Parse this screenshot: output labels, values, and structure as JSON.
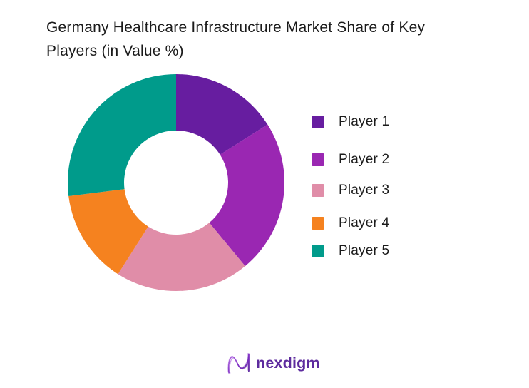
{
  "title": {
    "full": "Germany Healthcare Infrastructure Market Share of Key Players (in Value %)",
    "line1": "Germany Healthcare Infrastructure Market Share of Key",
    "line2": "Players (in Value %)"
  },
  "chart_data": {
    "type": "pie",
    "subtype": "donut",
    "title": "Germany Healthcare Infrastructure Market Share of Key Players (in Value %)",
    "categories": [
      "Player 1",
      "Player 2",
      "Player 3",
      "Player 4",
      "Player 5"
    ],
    "values": [
      16,
      23,
      20,
      14,
      27
    ],
    "unit": "%",
    "colors": [
      "#671DA0",
      "#9A27B2",
      "#E08DA8",
      "#F5821F",
      "#009B8B"
    ],
    "start_angle_deg": 0,
    "direction": "clockwise",
    "inner_radius_ratio": 0.48,
    "legend_position": "right",
    "data_labels": false
  },
  "legend": {
    "items": [
      {
        "label": "Player 1",
        "color": "#671DA0"
      },
      {
        "label": "Player 2",
        "color": "#9A27B2"
      },
      {
        "label": "Player 3",
        "color": "#E08DA8"
      },
      {
        "label": "Player 4",
        "color": "#F5821F"
      },
      {
        "label": "Player 5",
        "color": "#009B8B"
      }
    ]
  },
  "footer": {
    "brand_name": "nexdigm",
    "brand_color": "#5D2B9E"
  },
  "theme": {
    "background": "#FFFFFF",
    "text_color": "#1B1B1B"
  }
}
